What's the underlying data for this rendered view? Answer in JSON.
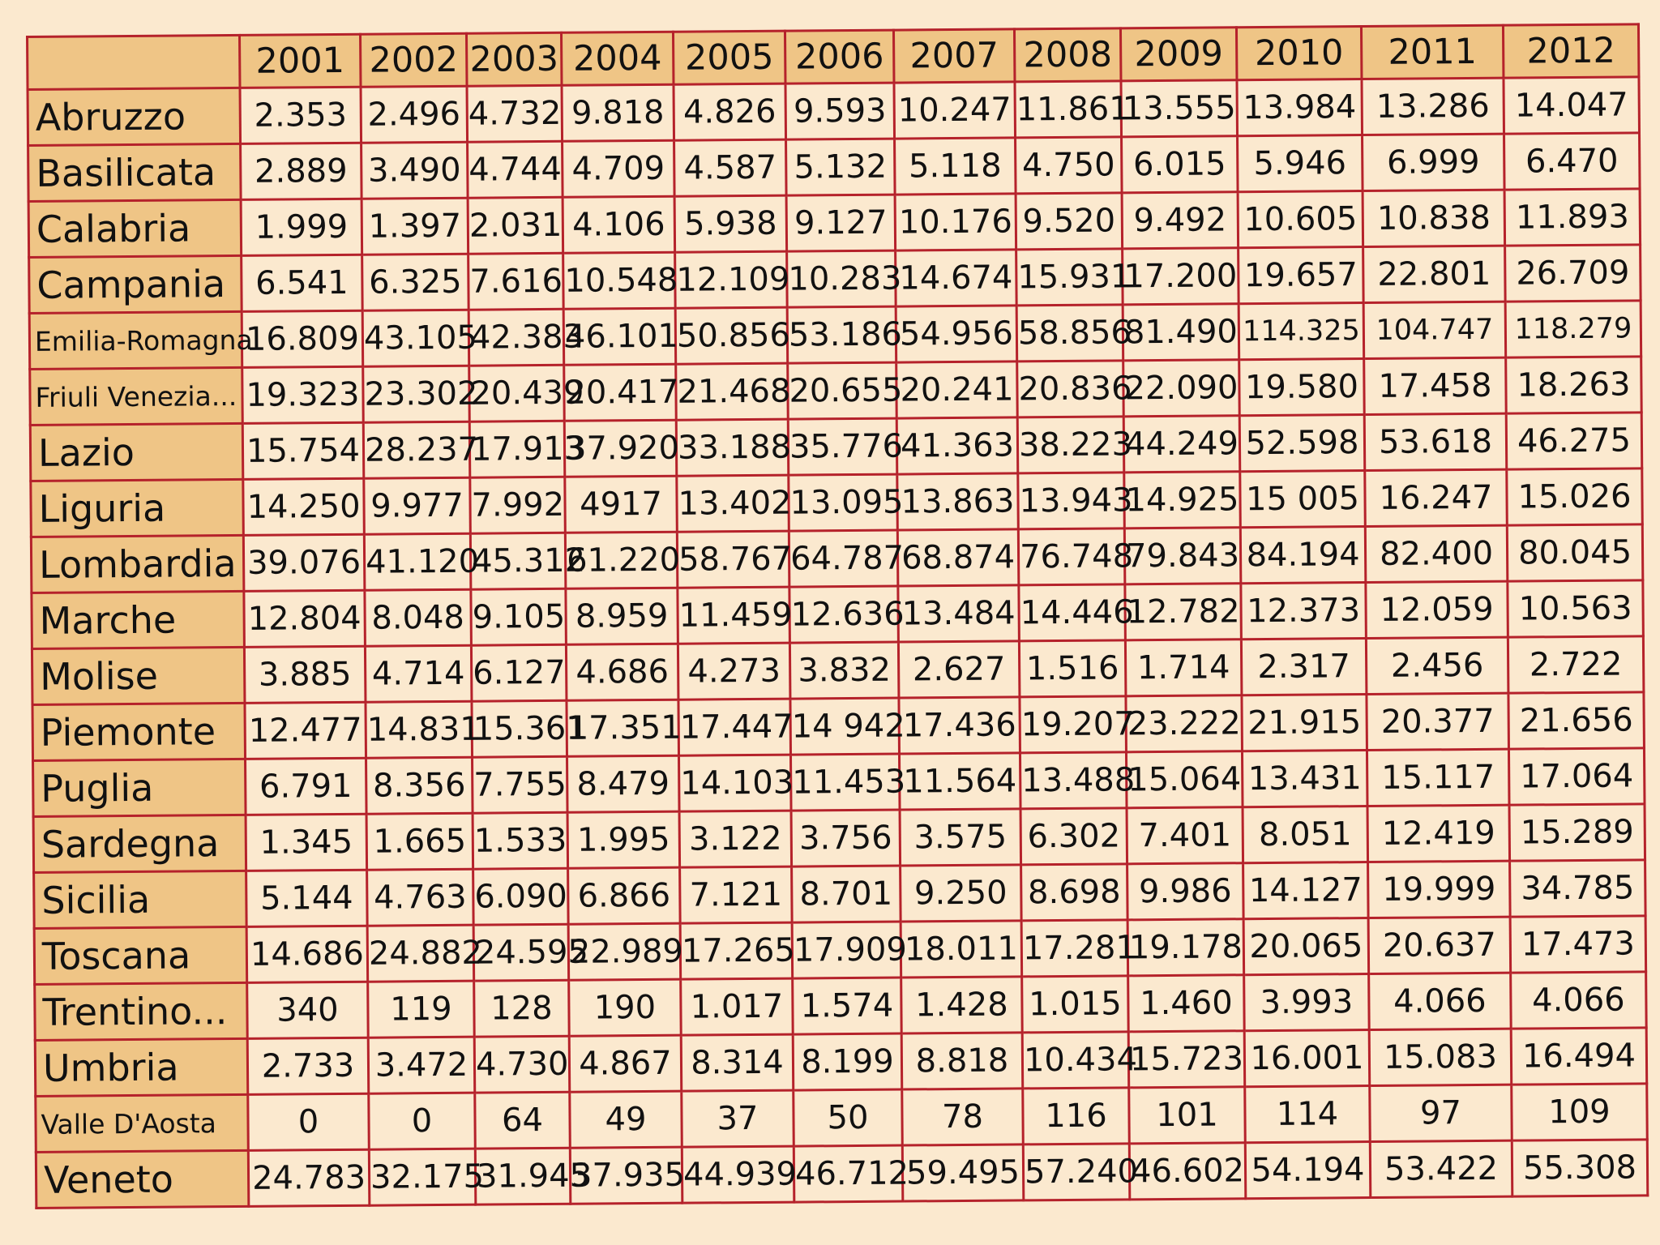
{
  "chart_data": {
    "type": "table",
    "columns": [
      "",
      "2001",
      "2002",
      "2003",
      "2004",
      "2005",
      "2006",
      "2007",
      "2008",
      "2009",
      "2010",
      "2011",
      "2012"
    ],
    "rows": [
      {
        "region": "Abruzzo",
        "values": [
          "2.353",
          "2.496",
          "4.732",
          "9.818",
          "4.826",
          "9.593",
          "10.247",
          "11.861",
          "13.555",
          "13.984",
          "13.286",
          "14.047"
        ]
      },
      {
        "region": "Basilicata",
        "values": [
          "2.889",
          "3.490",
          "4.744",
          "4.709",
          "4.587",
          "5.132",
          "5.118",
          "4.750",
          "6.015",
          "5.946",
          "6.999",
          "6.470"
        ]
      },
      {
        "region": "Calabria",
        "values": [
          "1.999",
          "1.397",
          "2.031",
          "4.106",
          "5.938",
          "9.127",
          "10.176",
          "9.520",
          "9.492",
          "10.605",
          "10.838",
          "11.893"
        ]
      },
      {
        "region": "Campania",
        "values": [
          "6.541",
          "6.325",
          "7.616",
          "10.548",
          "12.109",
          "10.283",
          "14.674",
          "15.931",
          "17.200",
          "19.657",
          "22.801",
          "26.709"
        ]
      },
      {
        "region": "Emilia-Romagna",
        "values": [
          "16.809",
          "43.105",
          "42.383",
          "46.101",
          "50.856",
          "53.186",
          "54.956",
          "58.856",
          "81.490",
          "114.325",
          "104.747",
          "118.279"
        ]
      },
      {
        "region": "Friuli Venezia...",
        "values": [
          "19.323",
          "23.302",
          "20.439",
          "20.417",
          "21.468",
          "20.655",
          "20.241",
          "20.836",
          "22.090",
          "19.580",
          "17.458",
          "18.263"
        ]
      },
      {
        "region": "Lazio",
        "values": [
          "15.754",
          "28.237",
          "17.913",
          "37.920",
          "33.188",
          "35.776",
          "41.363",
          "38.223",
          "44.249",
          "52.598",
          "53.618",
          "46.275"
        ]
      },
      {
        "region": "Liguria",
        "values": [
          "14.250",
          "9.977",
          "7.992",
          "4917",
          "13.402",
          "13.095",
          "13.863",
          "13.943",
          "14.925",
          "15 005",
          "16.247",
          "15.026"
        ]
      },
      {
        "region": "Lombardia",
        "values": [
          "39.076",
          "41.120",
          "45.312",
          "61.220",
          "58.767",
          "64.787",
          "68.874",
          "76.748",
          "79.843",
          "84.194",
          "82.400",
          "80.045"
        ]
      },
      {
        "region": "Marche",
        "values": [
          "12.804",
          "8.048",
          "9.105",
          "8.959",
          "11.459",
          "12.636",
          "13.484",
          "14.446",
          "12.782",
          "12.373",
          "12.059",
          "10.563"
        ]
      },
      {
        "region": "Molise",
        "values": [
          "3.885",
          "4.714",
          "6.127",
          "4.686",
          "4.273",
          "3.832",
          "2.627",
          "1.516",
          "1.714",
          "2.317",
          "2.456",
          "2.722"
        ]
      },
      {
        "region": "Piemonte",
        "values": [
          "12.477",
          "14.831",
          "15.361",
          "17.351",
          "17.447",
          "14 942",
          "17.436",
          "19.207",
          "23.222",
          "21.915",
          "20.377",
          "21.656"
        ]
      },
      {
        "region": "Puglia",
        "values": [
          "6.791",
          "8.356",
          "7.755",
          "8.479",
          "14.103",
          "11.453",
          "11.564",
          "13.488",
          "15.064",
          "13.431",
          "15.117",
          "17.064"
        ]
      },
      {
        "region": "Sardegna",
        "values": [
          "1.345",
          "1.665",
          "1.533",
          "1.995",
          "3.122",
          "3.756",
          "3.575",
          "6.302",
          "7.401",
          "8.051",
          "12.419",
          "15.289"
        ]
      },
      {
        "region": "Sicilia",
        "values": [
          "5.144",
          "4.763",
          "6.090",
          "6.866",
          "7.121",
          "8.701",
          "9.250",
          "8.698",
          "9.986",
          "14.127",
          "19.999",
          "34.785"
        ]
      },
      {
        "region": "Toscana",
        "values": [
          "14.686",
          "24.882",
          "24.595",
          "22.989",
          "17.265",
          "17.909",
          "18.011",
          "17.281",
          "19.178",
          "20.065",
          "20.637",
          "17.473"
        ]
      },
      {
        "region": "Trentino...",
        "values": [
          "340",
          "119",
          "128",
          "190",
          "1.017",
          "1.574",
          "1.428",
          "1.015",
          "1.460",
          "3.993",
          "4.066",
          "4.066"
        ]
      },
      {
        "region": "Umbria",
        "values": [
          "2.733",
          "3.472",
          "4.730",
          "4.867",
          "8.314",
          "8.199",
          "8.818",
          "10.434",
          "15.723",
          "16.001",
          "15.083",
          "16.494"
        ]
      },
      {
        "region": "Valle D'Aosta",
        "values": [
          "0",
          "0",
          "64",
          "49",
          "37",
          "50",
          "78",
          "116",
          "101",
          "114",
          "97",
          "109"
        ]
      },
      {
        "region": "Veneto",
        "values": [
          "24.783",
          "32.175",
          "31.945",
          "37.935",
          "44.939",
          "46.712",
          "59.495",
          "57.240",
          "46.602",
          "54.194",
          "53.422",
          "55.308"
        ]
      }
    ],
    "colors": {
      "background": "#fbe9cf",
      "header_fill": "#efc586",
      "grid_lines": "#b5222b",
      "text": "#111111"
    }
  }
}
